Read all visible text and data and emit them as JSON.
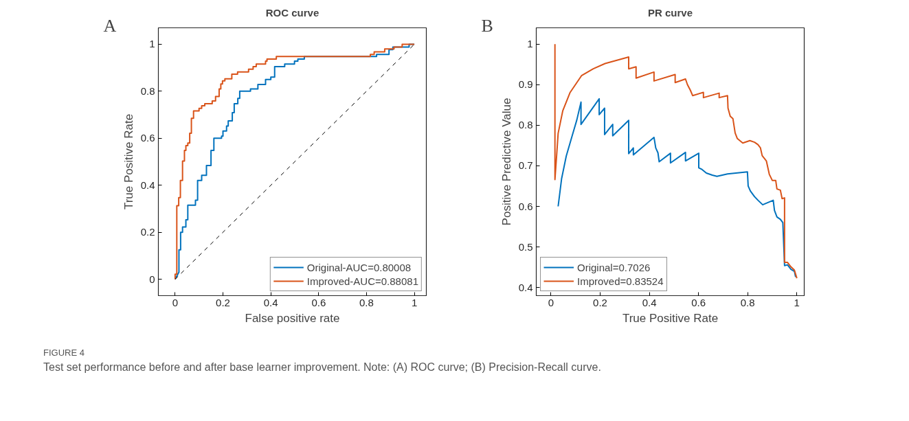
{
  "chart_data": [
    {
      "type": "line",
      "title": "ROC curve",
      "xlabel": "False positive rate",
      "ylabel": "True Positive Rate",
      "annotations": [
        "A",
        "FIGURE 4",
        "Test set performance before and after base learner improvement. Note: (A) ROC curve; (B) Precision-Recall curve."
      ],
      "xlim": [
        -0.07,
        1.05
      ],
      "ylim": [
        -0.07,
        1.07
      ],
      "xticks": [
        0,
        0.2,
        0.4,
        0.6,
        0.8,
        1
      ],
      "yticks": [
        0,
        0.2,
        0.4,
        0.6,
        0.8,
        1
      ],
      "grid": false,
      "legend": "bottom right",
      "line_style": "solid",
      "series": [
        {
          "name": "Original-AUC=0.80008",
          "color": "#0072bd",
          "x": [
            0,
            0.016,
            0.016,
            0.023,
            0.023,
            0.031,
            0.031,
            0.045,
            0.045,
            0.053,
            0.053,
            0.085,
            0.085,
            0.094,
            0.094,
            0.111,
            0.111,
            0.131,
            0.131,
            0.15,
            0.15,
            0.162,
            0.162,
            0.194,
            0.194,
            0.2,
            0.2,
            0.215,
            0.215,
            0.222,
            0.222,
            0.239,
            0.239,
            0.247,
            0.247,
            0.262,
            0.262,
            0.27,
            0.27,
            0.315,
            0.315,
            0.346,
            0.346,
            0.378,
            0.378,
            0.4,
            0.4,
            0.416,
            0.416,
            0.458,
            0.458,
            0.499,
            0.499,
            0.513,
            0.513,
            0.54,
            0.54,
            0.842,
            0.842,
            0.894,
            0.894,
            0.91,
            0.91,
            0.978,
            0.978,
            1
          ],
          "values": [
            0,
            0.03,
            0.125,
            0.125,
            0.2,
            0.2,
            0.222,
            0.222,
            0.253,
            0.253,
            0.315,
            0.315,
            0.336,
            0.336,
            0.42,
            0.42,
            0.442,
            0.442,
            0.484,
            0.484,
            0.548,
            0.548,
            0.6,
            0.6,
            0.609,
            0.609,
            0.631,
            0.631,
            0.652,
            0.652,
            0.674,
            0.674,
            0.709,
            0.709,
            0.747,
            0.747,
            0.77,
            0.77,
            0.8,
            0.8,
            0.81,
            0.81,
            0.829,
            0.829,
            0.85,
            0.85,
            0.86,
            0.86,
            0.905,
            0.905,
            0.916,
            0.916,
            0.928,
            0.928,
            0.937,
            0.937,
            0.948,
            0.948,
            0.957,
            0.957,
            0.977,
            0.977,
            0.988,
            0.988,
            1,
            1
          ]
        },
        {
          "name": "Improved-AUC=0.88081",
          "color": "#d95319",
          "x": [
            0,
            0,
            0.007,
            0.007,
            0.015,
            0.015,
            0.022,
            0.022,
            0.031,
            0.031,
            0.039,
            0.039,
            0.045,
            0.045,
            0.053,
            0.053,
            0.061,
            0.061,
            0.068,
            0.068,
            0.077,
            0.077,
            0.1,
            0.1,
            0.111,
            0.111,
            0.124,
            0.124,
            0.155,
            0.155,
            0.169,
            0.169,
            0.184,
            0.184,
            0.191,
            0.191,
            0.198,
            0.198,
            0.208,
            0.208,
            0.237,
            0.237,
            0.261,
            0.261,
            0.307,
            0.307,
            0.326,
            0.326,
            0.339,
            0.339,
            0.378,
            0.378,
            0.384,
            0.384,
            0.423,
            0.423,
            0.816,
            0.816,
            0.832,
            0.832,
            0.876,
            0.876,
            0.915,
            0.915,
            0.949,
            0.949,
            1
          ],
          "values": [
            0,
            0.021,
            0.021,
            0.313,
            0.313,
            0.347,
            0.347,
            0.42,
            0.42,
            0.503,
            0.503,
            0.548,
            0.548,
            0.569,
            0.569,
            0.58,
            0.58,
            0.621,
            0.621,
            0.685,
            0.685,
            0.716,
            0.716,
            0.727,
            0.727,
            0.738,
            0.738,
            0.747,
            0.747,
            0.759,
            0.759,
            0.778,
            0.778,
            0.81,
            0.81,
            0.831,
            0.831,
            0.844,
            0.844,
            0.853,
            0.853,
            0.873,
            0.873,
            0.882,
            0.882,
            0.894,
            0.894,
            0.905,
            0.905,
            0.916,
            0.916,
            0.928,
            0.928,
            0.937,
            0.937,
            0.948,
            0.948,
            0.957,
            0.957,
            0.968,
            0.968,
            0.98,
            0.98,
            0.988,
            0.988,
            1,
            1
          ]
        },
        {
          "color": "#000000",
          "line_style": "dashed",
          "x": [
            0,
            1
          ],
          "values": [
            0,
            1
          ]
        }
      ]
    },
    {
      "type": "line",
      "title": "PR curve",
      "xlabel": "True Positive Rate",
      "ylabel": "Positive Predictive Value",
      "annotations": [
        "B"
      ],
      "xlim": [
        -0.06,
        1.03
      ],
      "ylim": [
        0.38,
        1.04
      ],
      "xticks": [
        0,
        0.2,
        0.4,
        0.6,
        0.8,
        1
      ],
      "yticks": [
        0.4,
        0.5,
        0.6,
        0.7,
        0.8,
        0.9,
        1
      ],
      "grid": false,
      "legend": "bottom left",
      "line_style": "solid",
      "series": [
        {
          "name": "Original=0.7026",
          "color": "#0072bd",
          "x": [
            0.029,
            0.043,
            0.062,
            0.086,
            0.105,
            0.122,
            0.122,
            0.196,
            0.196,
            0.218,
            0.218,
            0.251,
            0.251,
            0.316,
            0.316,
            0.335,
            0.335,
            0.419,
            0.426,
            0.435,
            0.44,
            0.486,
            0.486,
            0.547,
            0.547,
            0.601,
            0.601,
            0.614,
            0.632,
            0.656,
            0.675,
            0.718,
            0.799,
            0.802,
            0.811,
            0.828,
            0.842,
            0.861,
            0.904,
            0.909,
            0.919,
            0.933,
            0.943,
            0.95,
            0.962,
            0.976,
            0.99,
            0.995
          ],
          "values": [
            0.6,
            0.668,
            0.724,
            0.774,
            0.813,
            0.857,
            0.802,
            0.865,
            0.826,
            0.842,
            0.777,
            0.802,
            0.774,
            0.812,
            0.73,
            0.744,
            0.727,
            0.77,
            0.744,
            0.732,
            0.71,
            0.731,
            0.707,
            0.733,
            0.712,
            0.731,
            0.695,
            0.691,
            0.682,
            0.677,
            0.674,
            0.68,
            0.685,
            0.65,
            0.638,
            0.624,
            0.615,
            0.604,
            0.615,
            0.59,
            0.574,
            0.568,
            0.56,
            0.454,
            0.456,
            0.445,
            0.44,
            0.426
          ]
        },
        {
          "name": "Improved=0.83524",
          "color": "#d95319",
          "x": [
            0.016,
            0.016,
            0.024,
            0.029,
            0.048,
            0.077,
            0.124,
            0.172,
            0.22,
            0.268,
            0.316,
            0.316,
            0.346,
            0.346,
            0.419,
            0.419,
            0.505,
            0.505,
            0.547,
            0.555,
            0.567,
            0.576,
            0.62,
            0.62,
            0.684,
            0.684,
            0.718,
            0.72,
            0.729,
            0.74,
            0.749,
            0.758,
            0.78,
            0.809,
            0.828,
            0.842,
            0.852,
            0.859,
            0.876,
            0.888,
            0.9,
            0.914,
            0.919,
            0.933,
            0.94,
            0.95,
            0.95,
            0.962,
            0.976,
            0.99,
            1.0
          ],
          "values": [
            1.0,
            0.666,
            0.735,
            0.78,
            0.836,
            0.88,
            0.922,
            0.939,
            0.952,
            0.96,
            0.968,
            0.939,
            0.944,
            0.916,
            0.931,
            0.909,
            0.925,
            0.905,
            0.914,
            0.9,
            0.886,
            0.873,
            0.881,
            0.868,
            0.879,
            0.868,
            0.873,
            0.842,
            0.822,
            0.816,
            0.781,
            0.767,
            0.756,
            0.762,
            0.758,
            0.752,
            0.744,
            0.725,
            0.712,
            0.679,
            0.664,
            0.664,
            0.643,
            0.64,
            0.619,
            0.621,
            0.462,
            0.462,
            0.451,
            0.443,
            0.423
          ]
        }
      ]
    }
  ]
}
